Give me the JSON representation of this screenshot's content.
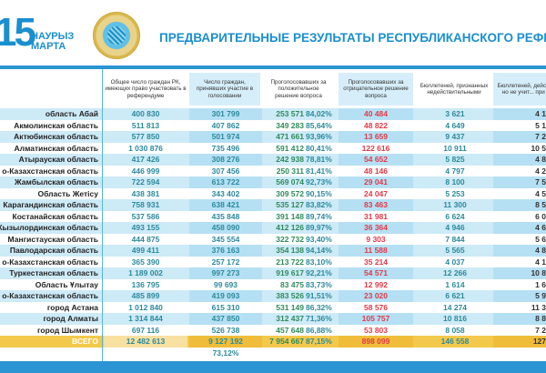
{
  "header": {
    "day": "15",
    "month_kz": "НАУРЫЗ",
    "month_ru": "МАРТА",
    "title": "ПРЕДВАРИТЕЛЬНЫЕ РЕЗУЛЬТАТЫ РЕСПУБЛИКАНСКОГО РЕФЕРЕ"
  },
  "columns": [
    "Общее число граждан РК, имеющих право участвовать в референдуме",
    "Число граждан, принявших участие в голосовании",
    "Проголосовавших за положительное решение вопроса",
    "Проголосовавших за отрицательное решение вопроса",
    "Бюллетеней, признанных недействительными",
    "Бюллетеней, действите... но не учит... при под..."
  ],
  "rows": [
    {
      "name": "область Абай",
      "eligible": "400 830",
      "voted": "301 799",
      "yes": "253 571",
      "yes_pct": "84,02%",
      "no": "40 484",
      "invalid": "3 621",
      "last": "4 1"
    },
    {
      "name": "Акмолинская область",
      "eligible": "511 813",
      "voted": "407 862",
      "yes": "349 283",
      "yes_pct": "85,64%",
      "no": "48 822",
      "invalid": "4 649",
      "last": "5 1"
    },
    {
      "name": "Актюбинская область",
      "eligible": "577 850",
      "voted": "501 974",
      "yes": "471 661",
      "yes_pct": "93,96%",
      "no": "13 659",
      "invalid": "9 437",
      "last": "7 2"
    },
    {
      "name": "Алматинская область",
      "eligible": "1 030 876",
      "voted": "735 496",
      "yes": "591 412",
      "yes_pct": "80,41%",
      "no": "122 616",
      "invalid": "10 911",
      "last": "10 5"
    },
    {
      "name": "Атырауская область",
      "eligible": "417 426",
      "voted": "308 276",
      "yes": "242 938",
      "yes_pct": "78,81%",
      "no": "54 652",
      "invalid": "5 825",
      "last": "4 8"
    },
    {
      "name": "о-Казахстанская область",
      "eligible": "446 999",
      "voted": "307 456",
      "yes": "250 311",
      "yes_pct": "81,41%",
      "no": "48 146",
      "invalid": "4 797",
      "last": "4 2"
    },
    {
      "name": "Жамбылская область",
      "eligible": "722 594",
      "voted": "613 722",
      "yes": "569 074",
      "yes_pct": "92,73%",
      "no": "29 041",
      "invalid": "8 100",
      "last": "7 5"
    },
    {
      "name": "Область Жетісу",
      "eligible": "438 381",
      "voted": "343 402",
      "yes": "309 572",
      "yes_pct": "90,15%",
      "no": "24 047",
      "invalid": "5 253",
      "last": "4 5"
    },
    {
      "name": "Карагандинская область",
      "eligible": "758 931",
      "voted": "638 421",
      "yes": "535 127",
      "yes_pct": "83,82%",
      "no": "83 463",
      "invalid": "11 300",
      "last": "8 5"
    },
    {
      "name": "Костанайская область",
      "eligible": "537 586",
      "voted": "435 848",
      "yes": "391 148",
      "yes_pct": "89,74%",
      "no": "31 981",
      "invalid": "6 624",
      "last": "6 0"
    },
    {
      "name": "Кызылординская область",
      "eligible": "493 155",
      "voted": "458 090",
      "yes": "412 126",
      "yes_pct": "89,97%",
      "no": "36 364",
      "invalid": "4 946",
      "last": "4 6"
    },
    {
      "name": "Мангистауская область",
      "eligible": "444 875",
      "voted": "345 554",
      "yes": "322 732",
      "yes_pct": "93,40%",
      "no": "9 303",
      "invalid": "7 844",
      "last": "5 6"
    },
    {
      "name": "Павлодарская область",
      "eligible": "499 411",
      "voted": "376 163",
      "yes": "354 138",
      "yes_pct": "94,14%",
      "no": "11 588",
      "invalid": "5 565",
      "last": "4 8"
    },
    {
      "name": "о-Казахстанская область",
      "eligible": "365 390",
      "voted": "257 172",
      "yes": "213 722",
      "yes_pct": "83,10%",
      "no": "35 214",
      "invalid": "4 037",
      "last": "4 1"
    },
    {
      "name": "Туркестанская область",
      "eligible": "1 189 002",
      "voted": "997 273",
      "yes": "919 617",
      "yes_pct": "92,21%",
      "no": "54 571",
      "invalid": "12 266",
      "last": "10 8"
    },
    {
      "name": "Область Ұлытау",
      "eligible": "136 795",
      "voted": "99 693",
      "yes": "83 475",
      "yes_pct": "83,73%",
      "no": "12 992",
      "invalid": "1 614",
      "last": "1 6"
    },
    {
      "name": "о-Казахстанская область",
      "eligible": "485 899",
      "voted": "419 093",
      "yes": "383 526",
      "yes_pct": "91,51%",
      "no": "23 020",
      "invalid": "6 621",
      "last": "5 9"
    },
    {
      "name": "город Астана",
      "eligible": "1 012 840",
      "voted": "615 310",
      "yes": "531 149",
      "yes_pct": "86,32%",
      "no": "58 576",
      "invalid": "14 274",
      "last": "11 3"
    },
    {
      "name": "город Алматы",
      "eligible": "1 314 844",
      "voted": "437 850",
      "yes": "312 437",
      "yes_pct": "71,36%",
      "no": "105 757",
      "invalid": "10 816",
      "last": "8 8"
    },
    {
      "name": "город Шымкент",
      "eligible": "697 116",
      "voted": "526 738",
      "yes": "457 648",
      "yes_pct": "86,88%",
      "no": "53 803",
      "invalid": "8 058",
      "last": "7 2"
    }
  ],
  "total": {
    "name": "ВСЕГО",
    "eligible": "12 482 613",
    "voted": "9 127 192",
    "yes": "7 954 667",
    "yes_pct": "87,15%",
    "no": "898 099",
    "invalid": "146 558",
    "last": "127"
  },
  "turnout_pct": "73,12%"
}
